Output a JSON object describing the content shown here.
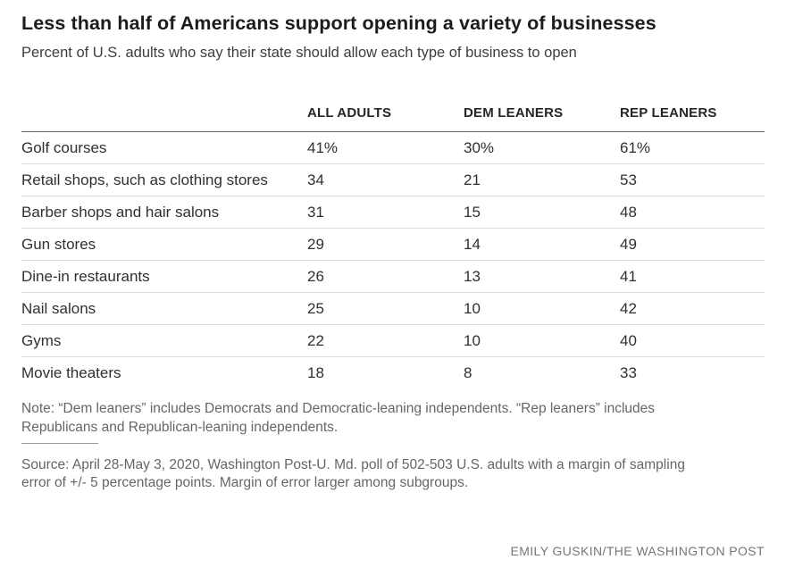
{
  "header": {
    "title": "Less than half of Americans support opening a variety of businesses",
    "subtitle": "Percent of U.S. adults who say their state should allow each type of business to open"
  },
  "table": {
    "columns": [
      "ALL ADULTS",
      "DEM LEANERS",
      "REP LEANERS"
    ],
    "rows": [
      {
        "label": "Golf courses",
        "values": [
          "41%",
          "30%",
          "61%"
        ]
      },
      {
        "label": "Retail shops, such as clothing stores",
        "values": [
          "34",
          "21",
          "53"
        ]
      },
      {
        "label": "Barber shops and hair salons",
        "values": [
          "31",
          "15",
          "48"
        ]
      },
      {
        "label": "Gun stores",
        "values": [
          "29",
          "14",
          "49"
        ]
      },
      {
        "label": "Dine-in restaurants",
        "values": [
          "26",
          "13",
          "41"
        ]
      },
      {
        "label": "Nail salons",
        "values": [
          "25",
          "10",
          "42"
        ]
      },
      {
        "label": "Gyms",
        "values": [
          "22",
          "10",
          "40"
        ]
      },
      {
        "label": "Movie theaters",
        "values": [
          "18",
          "8",
          "33"
        ]
      }
    ]
  },
  "footnotes": {
    "note_lines": [
      "Note: “Dem leaners” includes Democrats and Democratic-leaning independents. “Rep leaners” includes",
      "Republicans and Republican-leaning independents."
    ],
    "source_lines": [
      "Source: April 28-May 3, 2020, Washington Post-U. Md. poll of 502-503 U.S. adults with a margin of sampling",
      "error of +/- 5 percentage points. Margin of error larger among subgroups."
    ]
  },
  "credit": "EMILY GUSKIN/THE WASHINGTON POST",
  "colors": {
    "background": "#ffffff",
    "title_text": "#1c1c1c",
    "body_text": "#303030",
    "muted_text": "#666666",
    "header_rule": "#666666",
    "row_rule": "#dcdcdc"
  },
  "chart_data": {
    "type": "table",
    "title": "Less than half of Americans support opening a variety of businesses",
    "subtitle": "Percent of U.S. adults who say their state should allow each type of business to open",
    "categories": [
      "Golf courses",
      "Retail shops, such as clothing stores",
      "Barber shops and hair salons",
      "Gun stores",
      "Dine-in restaurants",
      "Nail salons",
      "Gyms",
      "Movie theaters"
    ],
    "series": [
      {
        "name": "All adults",
        "values": [
          41,
          34,
          31,
          29,
          26,
          25,
          22,
          18
        ]
      },
      {
        "name": "Dem leaners",
        "values": [
          30,
          21,
          15,
          14,
          13,
          10,
          10,
          8
        ]
      },
      {
        "name": "Rep leaners",
        "values": [
          61,
          53,
          48,
          49,
          41,
          42,
          40,
          33
        ]
      }
    ],
    "units": "percent",
    "note": "“Dem leaners” includes Democrats and Democratic-leaning independents. “Rep leaners” includes Republicans and Republican-leaning independents.",
    "source": "April 28-May 3, 2020, Washington Post-U. Md. poll of 502-503 U.S. adults with a margin of sampling error of +/- 5 percentage points. Margin of error larger among subgroups.",
    "credit": "EMILY GUSKIN/THE WASHINGTON POST"
  }
}
